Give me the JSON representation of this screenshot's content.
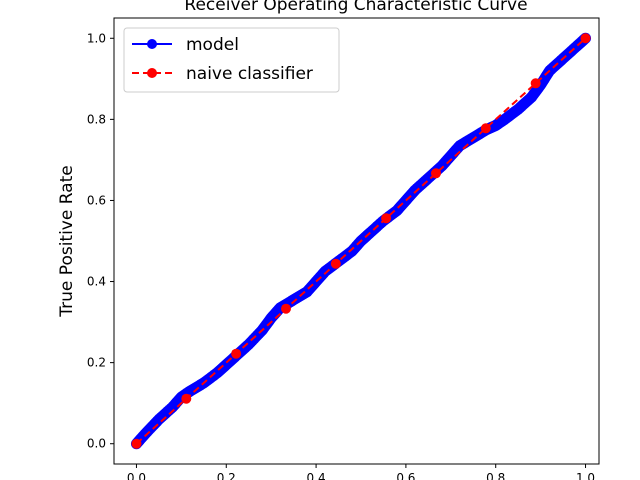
{
  "chart_data": {
    "type": "line",
    "title": "Receiver Operating Characteristic Curve",
    "xlabel": "",
    "ylabel": "True Positive Rate",
    "xlim": [
      -0.05,
      1.03
    ],
    "ylim": [
      -0.05,
      1.05
    ],
    "xticks": [
      "0.0",
      "0.2",
      "0.4",
      "0.6",
      "0.8",
      "1.0"
    ],
    "yticks": [
      "0.0",
      "0.2",
      "0.4",
      "0.6",
      "0.8",
      "1.0"
    ],
    "xtick_values": [
      0,
      0.2,
      0.4,
      0.6,
      0.8,
      1.0
    ],
    "ytick_values": [
      0,
      0.2,
      0.4,
      0.6,
      0.8,
      1.0
    ],
    "grid": false,
    "legend": {
      "position": "top-left",
      "entries": [
        "model",
        "naive classifier"
      ]
    },
    "series": [
      {
        "name": "model",
        "color": "#0000ff",
        "linestyle": "solid",
        "marker": "circle",
        "dense": true,
        "x": [
          0.0,
          0.02,
          0.05,
          0.08,
          0.1,
          0.12,
          0.15,
          0.18,
          0.2,
          0.22,
          0.25,
          0.28,
          0.3,
          0.32,
          0.35,
          0.38,
          0.4,
          0.42,
          0.45,
          0.48,
          0.5,
          0.52,
          0.55,
          0.58,
          0.6,
          0.62,
          0.65,
          0.68,
          0.7,
          0.72,
          0.75,
          0.78,
          0.8,
          0.82,
          0.85,
          0.88,
          0.9,
          0.92,
          0.95,
          0.98,
          1.0
        ],
        "y": [
          0.0,
          0.025,
          0.06,
          0.09,
          0.115,
          0.13,
          0.15,
          0.175,
          0.195,
          0.215,
          0.245,
          0.28,
          0.31,
          0.335,
          0.355,
          0.375,
          0.4,
          0.425,
          0.45,
          0.475,
          0.5,
          0.52,
          0.55,
          0.575,
          0.6,
          0.625,
          0.655,
          0.685,
          0.71,
          0.735,
          0.755,
          0.775,
          0.785,
          0.8,
          0.825,
          0.855,
          0.885,
          0.92,
          0.95,
          0.98,
          1.0
        ]
      },
      {
        "name": "naive classifier",
        "color": "#ff0000",
        "linestyle": "dashed",
        "marker": "circle",
        "x": [
          0.0,
          0.111,
          0.222,
          0.333,
          0.444,
          0.556,
          0.667,
          0.778,
          0.889,
          1.0
        ],
        "y": [
          0.0,
          0.111,
          0.222,
          0.333,
          0.444,
          0.556,
          0.667,
          0.778,
          0.889,
          1.0
        ]
      }
    ]
  }
}
